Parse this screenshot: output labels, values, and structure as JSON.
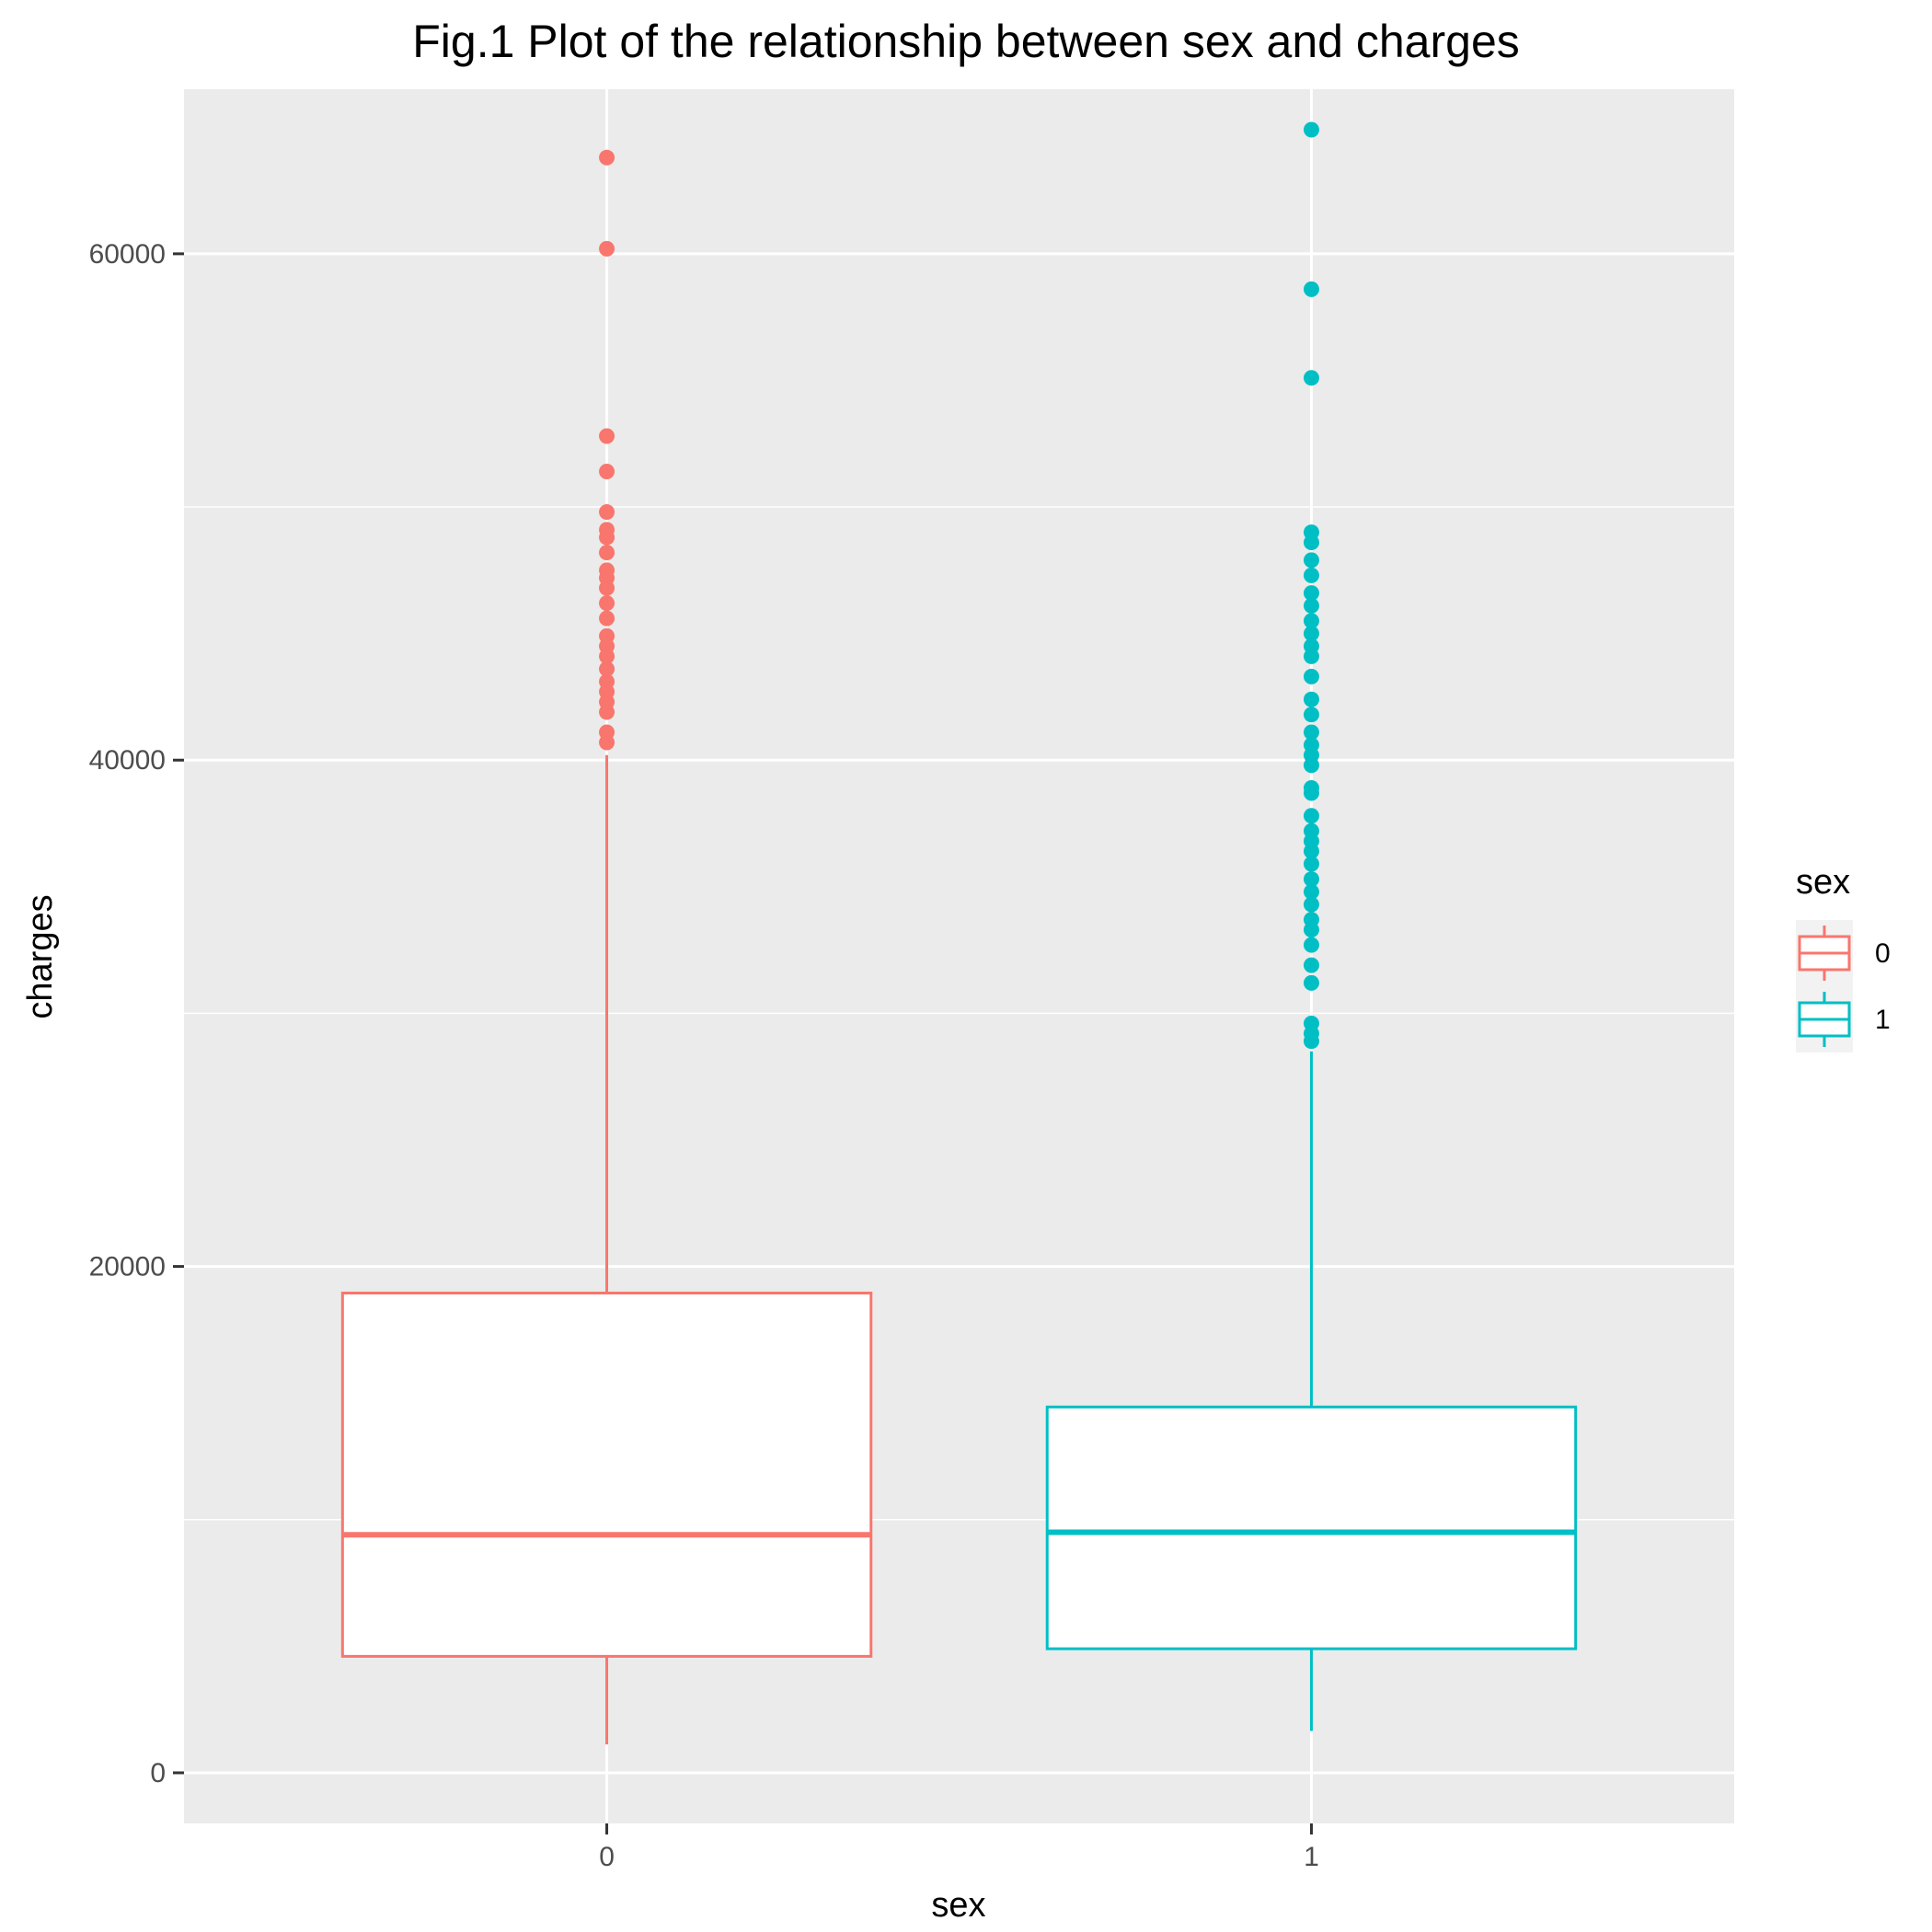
{
  "chart_data": {
    "type": "box",
    "title": "Fig.1 Plot of the relationship between sex and charges",
    "xlabel": "sex",
    "ylabel": "charges",
    "ylim": [
      -2000,
      66500
    ],
    "yticks": [
      0,
      20000,
      40000,
      60000
    ],
    "ytick_labels": [
      "0",
      "20000",
      "40000",
      "60000"
    ],
    "grid": true,
    "legend": {
      "title": "sex",
      "position": "right"
    },
    "categories": [
      "0",
      "1"
    ],
    "series": [
      {
        "name": "0",
        "color": "#F8766D",
        "whisker_low": 1120,
        "q1": 4600,
        "median": 9400,
        "q3": 18950,
        "whisker_high": 40200,
        "outliers": [
          63800,
          60200,
          52800,
          51400,
          49800,
          49100,
          48800,
          48200,
          47500,
          47200,
          46800,
          46200,
          45600,
          44900,
          44500,
          44100,
          43600,
          43100,
          42700,
          42300,
          41900,
          41100,
          40700
        ]
      },
      {
        "name": "1",
        "color": "#00BFC4",
        "whisker_low": 1650,
        "q1": 4900,
        "median": 9500,
        "q3": 14450,
        "whisker_high": 28500,
        "outliers": [
          64900,
          58600,
          55100,
          49000,
          48600,
          47900,
          47300,
          46600,
          46100,
          45500,
          45000,
          44500,
          44100,
          43300,
          42400,
          41800,
          41100,
          40600,
          40200,
          39800,
          38900,
          38700,
          37800,
          37200,
          36800,
          36400,
          35900,
          35300,
          34800,
          34300,
          33700,
          33300,
          32700,
          31900,
          31200,
          29600,
          29200,
          28900
        ]
      }
    ]
  }
}
